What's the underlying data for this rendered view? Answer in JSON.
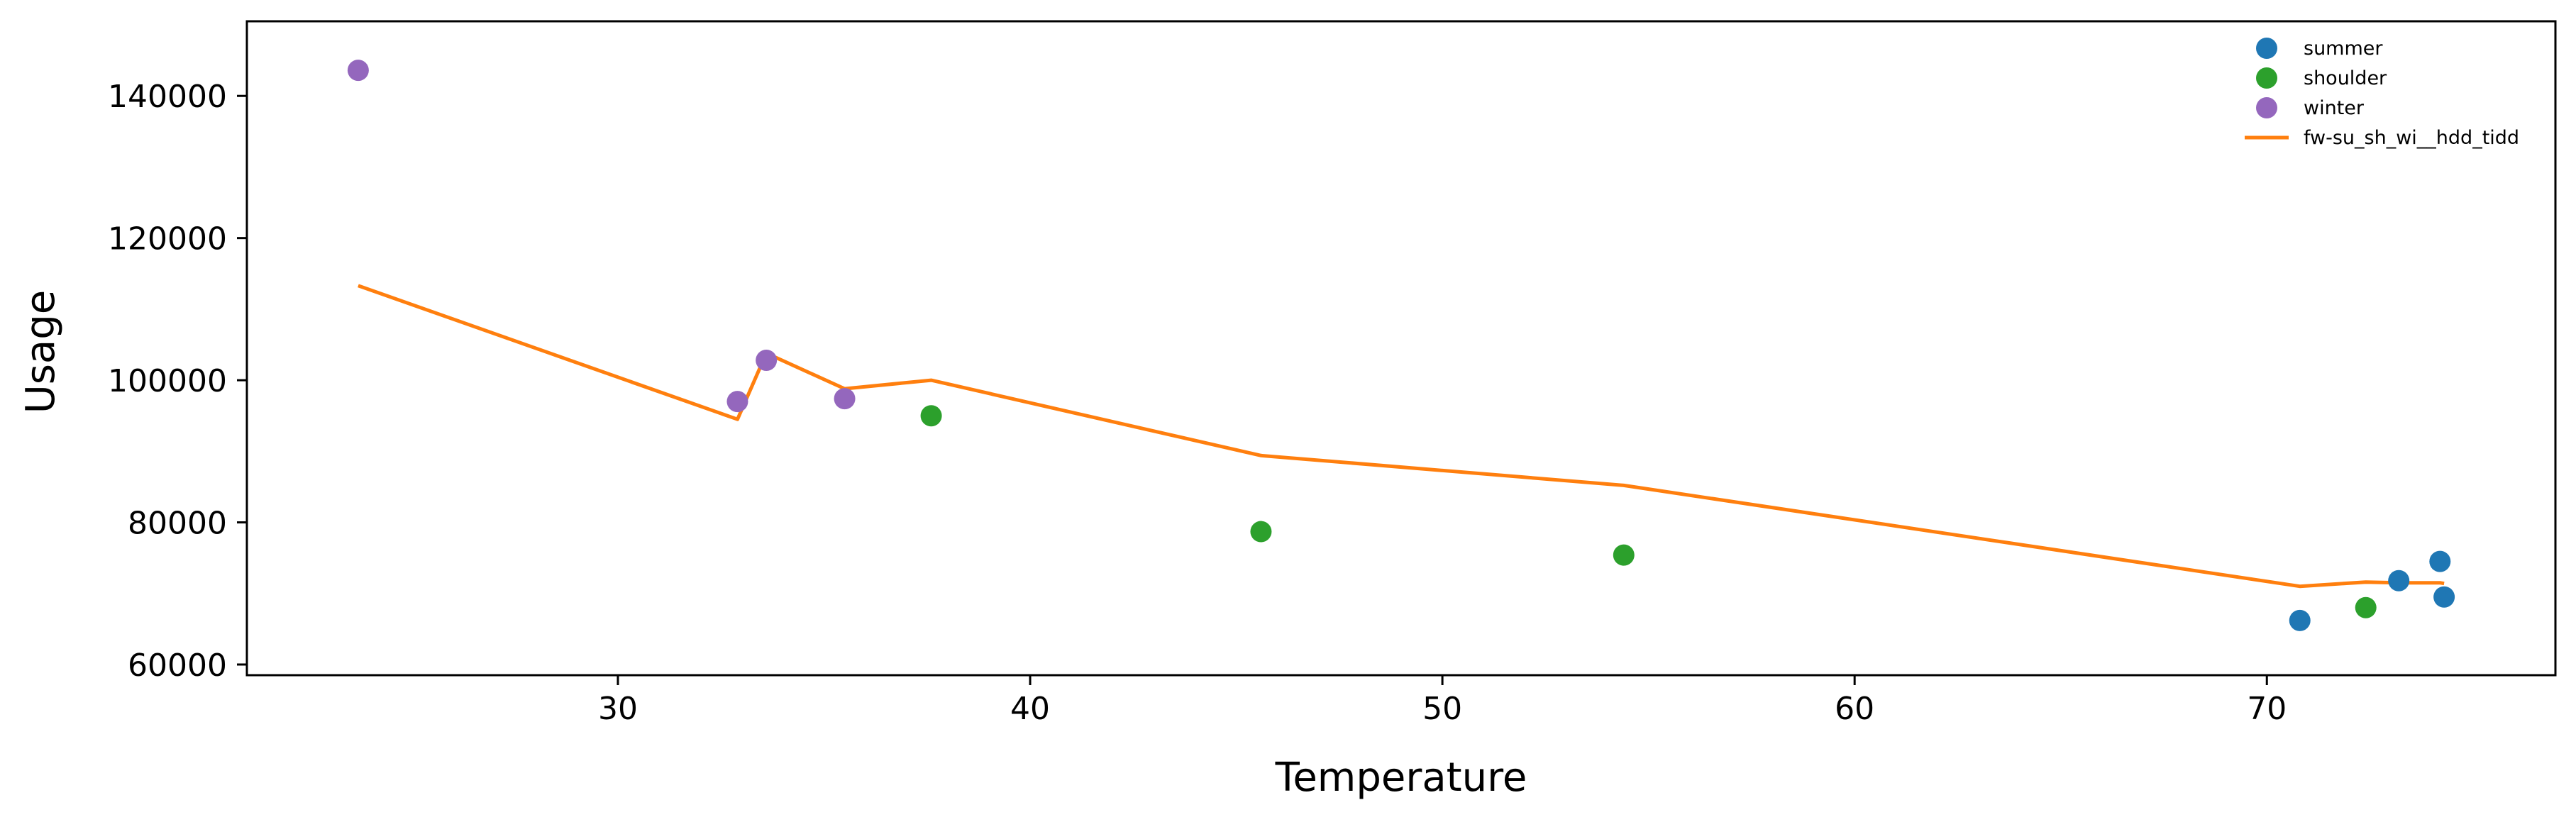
{
  "chart_data": {
    "type": "scatter",
    "title": "",
    "xlabel": "Temperature",
    "ylabel": "Usage",
    "xlim": [
      21,
      77
    ],
    "ylim": [
      58500,
      150500
    ],
    "x_ticks": [
      30,
      40,
      50,
      60,
      70
    ],
    "y_ticks": [
      60000,
      80000,
      100000,
      120000,
      140000
    ],
    "grid": false,
    "legend_position": "top-right",
    "series": [
      {
        "name": "summer",
        "kind": "scatter",
        "color": "#1f77b4",
        "points": [
          [
            70.8,
            66200
          ],
          [
            73.2,
            71800
          ],
          [
            74.2,
            74500
          ],
          [
            74.3,
            69500
          ]
        ]
      },
      {
        "name": "shoulder",
        "kind": "scatter",
        "color": "#2ca02c",
        "points": [
          [
            37.6,
            95000
          ],
          [
            45.6,
            78700
          ],
          [
            54.4,
            75400
          ],
          [
            72.4,
            68000
          ]
        ]
      },
      {
        "name": "winter",
        "kind": "scatter",
        "color": "#9467bd",
        "points": [
          [
            23.7,
            143600
          ],
          [
            32.9,
            97000
          ],
          [
            33.6,
            102800
          ],
          [
            35.5,
            97400
          ]
        ]
      },
      {
        "name": "fw-su_sh_wi__hdd_tidd",
        "kind": "line",
        "color": "#ff7f0e",
        "points": [
          [
            23.7,
            113300
          ],
          [
            32.9,
            94500
          ],
          [
            33.6,
            103800
          ],
          [
            35.5,
            98800
          ],
          [
            37.6,
            100000
          ],
          [
            45.6,
            89400
          ],
          [
            54.4,
            85200
          ],
          [
            70.8,
            71000
          ],
          [
            72.4,
            71600
          ],
          [
            73.2,
            71500
          ],
          [
            74.2,
            71500
          ],
          [
            74.3,
            71400
          ]
        ]
      }
    ]
  }
}
